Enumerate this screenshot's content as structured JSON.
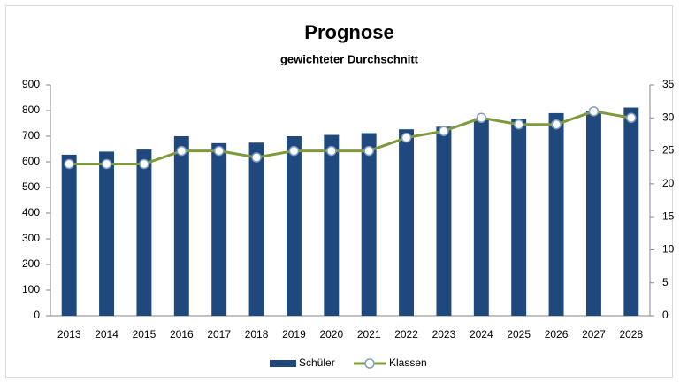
{
  "chart_data": {
    "type": "bar",
    "title": "Prognose",
    "subtitle": "gewichteter Durchschnitt",
    "categories": [
      "2013",
      "2014",
      "2015",
      "2016",
      "2017",
      "2018",
      "2019",
      "2020",
      "2021",
      "2022",
      "2023",
      "2024",
      "2025",
      "2026",
      "2027",
      "2028"
    ],
    "series": [
      {
        "name": "Schüler",
        "type": "bar",
        "color": "#1f497d",
        "values": [
          628,
          640,
          648,
          700,
          673,
          675,
          700,
          705,
          712,
          727,
          737,
          770,
          767,
          790,
          800,
          812
        ]
      },
      {
        "name": "Klassen",
        "type": "line",
        "axis": "y2",
        "color": "#7f9a3a",
        "values": [
          23,
          23,
          23,
          25,
          25,
          24,
          25,
          25,
          25,
          27,
          28,
          30,
          29,
          29,
          31,
          30
        ]
      }
    ],
    "ylim": [
      0,
      900
    ],
    "yticks": [
      0,
      100,
      200,
      300,
      400,
      500,
      600,
      700,
      800,
      900
    ],
    "y2lim": [
      0,
      35
    ],
    "y2ticks": [
      0,
      5,
      10,
      15,
      20,
      25,
      30,
      35
    ],
    "grid": false,
    "legend": "bottom"
  }
}
